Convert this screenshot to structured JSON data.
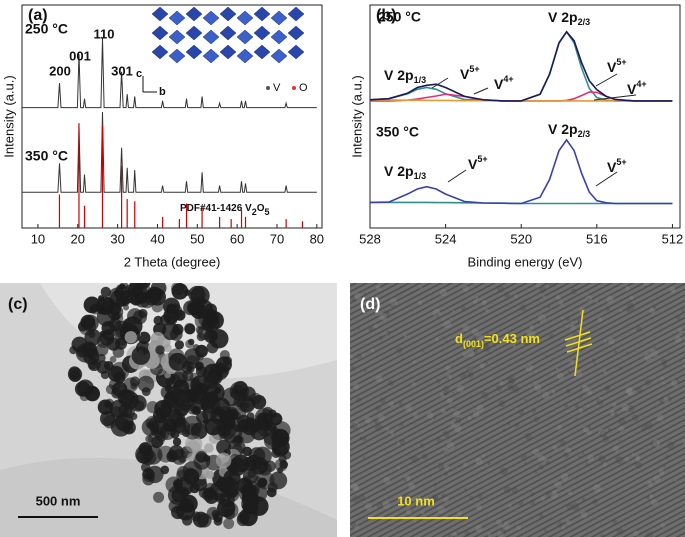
{
  "chart_data": [
    {
      "type": "line",
      "panel_label": "(a)",
      "xlabel": "2 Theta (degree)",
      "ylabel": "Intensity (a.u.)",
      "xlim": [
        6,
        81.3
      ],
      "xticks": [
        10,
        20,
        30,
        40,
        50,
        60,
        70,
        80
      ],
      "ylim": [
        0,
        100
      ],
      "x": [
        6,
        15.0,
        15.4,
        15.8,
        19.9,
        20.3,
        20.7,
        21.4,
        21.7,
        22.0,
        25.8,
        26.2,
        26.6,
        30.6,
        31.0,
        31.4,
        32.1,
        32.4,
        32.7,
        34.0,
        34.3,
        34.6,
        41.0,
        41.3,
        41.6,
        47.0,
        47.3,
        47.6,
        50.9,
        51.2,
        51.5,
        55.3,
        55.6,
        55.9,
        60.8,
        61.1,
        61.4,
        61.8,
        62.1,
        62.4,
        72.0,
        72.3,
        72.6,
        80
      ],
      "peak_labels": [
        "200",
        "001",
        "110",
        "301"
      ],
      "inset": {
        "axes": [
          "c",
          "b"
        ],
        "atoms": [
          {
            "name": "V",
            "color": "#555555"
          },
          {
            "name": "O",
            "color": "#e03030"
          }
        ]
      },
      "series": [
        {
          "name": "250 °C",
          "color": "#333333",
          "values": [
            54,
            54,
            65,
            54,
            54,
            78,
            54,
            54,
            58,
            54,
            54,
            85,
            54,
            54,
            70,
            54,
            54,
            60,
            54,
            54,
            59,
            54,
            54,
            57,
            54,
            54,
            58,
            54,
            54,
            59,
            54,
            54,
            56,
            54,
            54,
            57,
            54,
            54,
            57,
            54,
            54,
            56,
            54,
            54
          ]
        },
        {
          "name": "350 °C",
          "color": "#333333",
          "values": [
            16,
            16,
            29,
            16,
            16,
            46,
            16,
            16,
            24,
            16,
            16,
            52,
            16,
            16,
            36,
            16,
            16,
            27,
            16,
            16,
            26,
            16,
            16,
            19,
            16,
            16,
            21,
            16,
            16,
            25,
            16,
            16,
            19,
            16,
            16,
            21,
            16,
            16,
            20,
            16,
            16,
            19,
            16,
            16
          ]
        },
        {
          "name": [
            "PDF#41-1426 V",
            {
              "sub": "2"
            },
            "O",
            {
              "sub": "5"
            }
          ],
          "color": "#d00000",
          "style": "stick",
          "x": [
            15.4,
            20.3,
            21.7,
            26.2,
            31.0,
            32.4,
            34.3,
            41.3,
            45.5,
            47.3,
            51.2,
            55.6,
            58.5,
            61.1,
            62.1,
            72.3,
            76.4
          ],
          "values": [
            15,
            47,
            10,
            46,
            28,
            13,
            12,
            5,
            4,
            11,
            10,
            5,
            4,
            8,
            5,
            4,
            3
          ]
        }
      ]
    },
    {
      "type": "line",
      "panel_label": "(b)",
      "xlabel": "Binding energy (eV)",
      "ylabel": "Intensity (a.u.)",
      "xlim": [
        528,
        511.6
      ],
      "xticks": [
        528,
        524,
        520,
        516,
        512
      ],
      "ylim": [
        0,
        100
      ],
      "x": [
        528,
        527,
        526,
        525.5,
        525,
        524.5,
        524,
        523,
        522,
        521,
        520,
        519,
        518.5,
        518,
        517.6,
        517.2,
        516.8,
        516.4,
        516,
        515.5,
        515,
        514,
        513,
        512
      ],
      "annotations": [
        "250 °C",
        "350 °C",
        [
          "V 2p",
          {
            "sub": "1/3"
          }
        ],
        [
          "V",
          {
            "sup": "5+"
          }
        ],
        [
          "V",
          {
            "sup": "4+"
          }
        ],
        [
          "V 2p",
          {
            "sub": "2/3"
          }
        ],
        [
          "V",
          {
            "sup": "5+"
          }
        ],
        [
          "V",
          {
            "sup": "4+"
          }
        ],
        [
          "V 2p",
          {
            "sub": "1/3"
          }
        ],
        [
          "V",
          {
            "sup": "5+"
          }
        ],
        [
          "V 2p",
          {
            "sub": "2/3"
          }
        ],
        [
          "V",
          {
            "sup": "5+"
          }
        ]
      ],
      "series": [
        {
          "color": "#2f8f8f",
          "values": [
            57.5,
            58,
            60.2,
            62.2,
            63,
            62.2,
            60.2,
            57.6,
            57.5,
            57,
            57,
            60,
            69,
            83,
            88,
            83,
            71.6,
            62.6,
            58.5,
            57.3,
            57,
            57,
            57,
            57
          ]
        },
        {
          "color": "#e0307a",
          "values": [
            57,
            57,
            57.3,
            57.8,
            58.5,
            59.2,
            60,
            59,
            57.3,
            57,
            57,
            57,
            57,
            57,
            57.2,
            58,
            59.4,
            61,
            60.8,
            59,
            57.6,
            57,
            57,
            57
          ]
        },
        {
          "color": "#e89a30",
          "values": [
            57.5,
            57.4,
            57.3,
            57.3,
            57.2,
            57.2,
            57.2,
            57.1,
            57.1,
            57.1,
            57,
            57,
            57,
            57,
            57,
            57,
            57,
            57,
            57,
            57,
            57,
            57,
            57,
            57
          ]
        },
        {
          "color": "#1a1a5e",
          "values": [
            57.5,
            58,
            60.5,
            63,
            64,
            64.5,
            63,
            59,
            57.5,
            57,
            57,
            60,
            69,
            83,
            88,
            84,
            74,
            66,
            62,
            59,
            57.6,
            57,
            57,
            57
          ]
        },
        {
          "color": "#2f8f8f",
          "values": [
            11.5,
            11.5,
            11.5,
            11.5,
            11.5,
            11.4,
            11.4,
            11.3,
            11.2,
            11.1,
            11,
            11,
            11,
            11,
            11,
            11,
            11,
            11,
            11,
            11,
            11,
            11,
            11,
            11
          ]
        },
        {
          "color": "#3a3fb0",
          "values": [
            11.5,
            11.6,
            15.3,
            17.5,
            18.5,
            17.5,
            15.2,
            11.9,
            11.2,
            11.1,
            11,
            13.8,
            21.8,
            34.7,
            39.5,
            34.7,
            24.4,
            16.1,
            12.3,
            11.3,
            11,
            11,
            11,
            11
          ]
        }
      ]
    }
  ],
  "images": [
    {
      "label": "(c)",
      "scale_bar": "500 nm"
    },
    {
      "label": "(d)",
      "annotation": [
        "d",
        {
          "sub": "(001)"
        },
        "=0.43 nm"
      ],
      "scale_bar": "10 nm"
    }
  ]
}
